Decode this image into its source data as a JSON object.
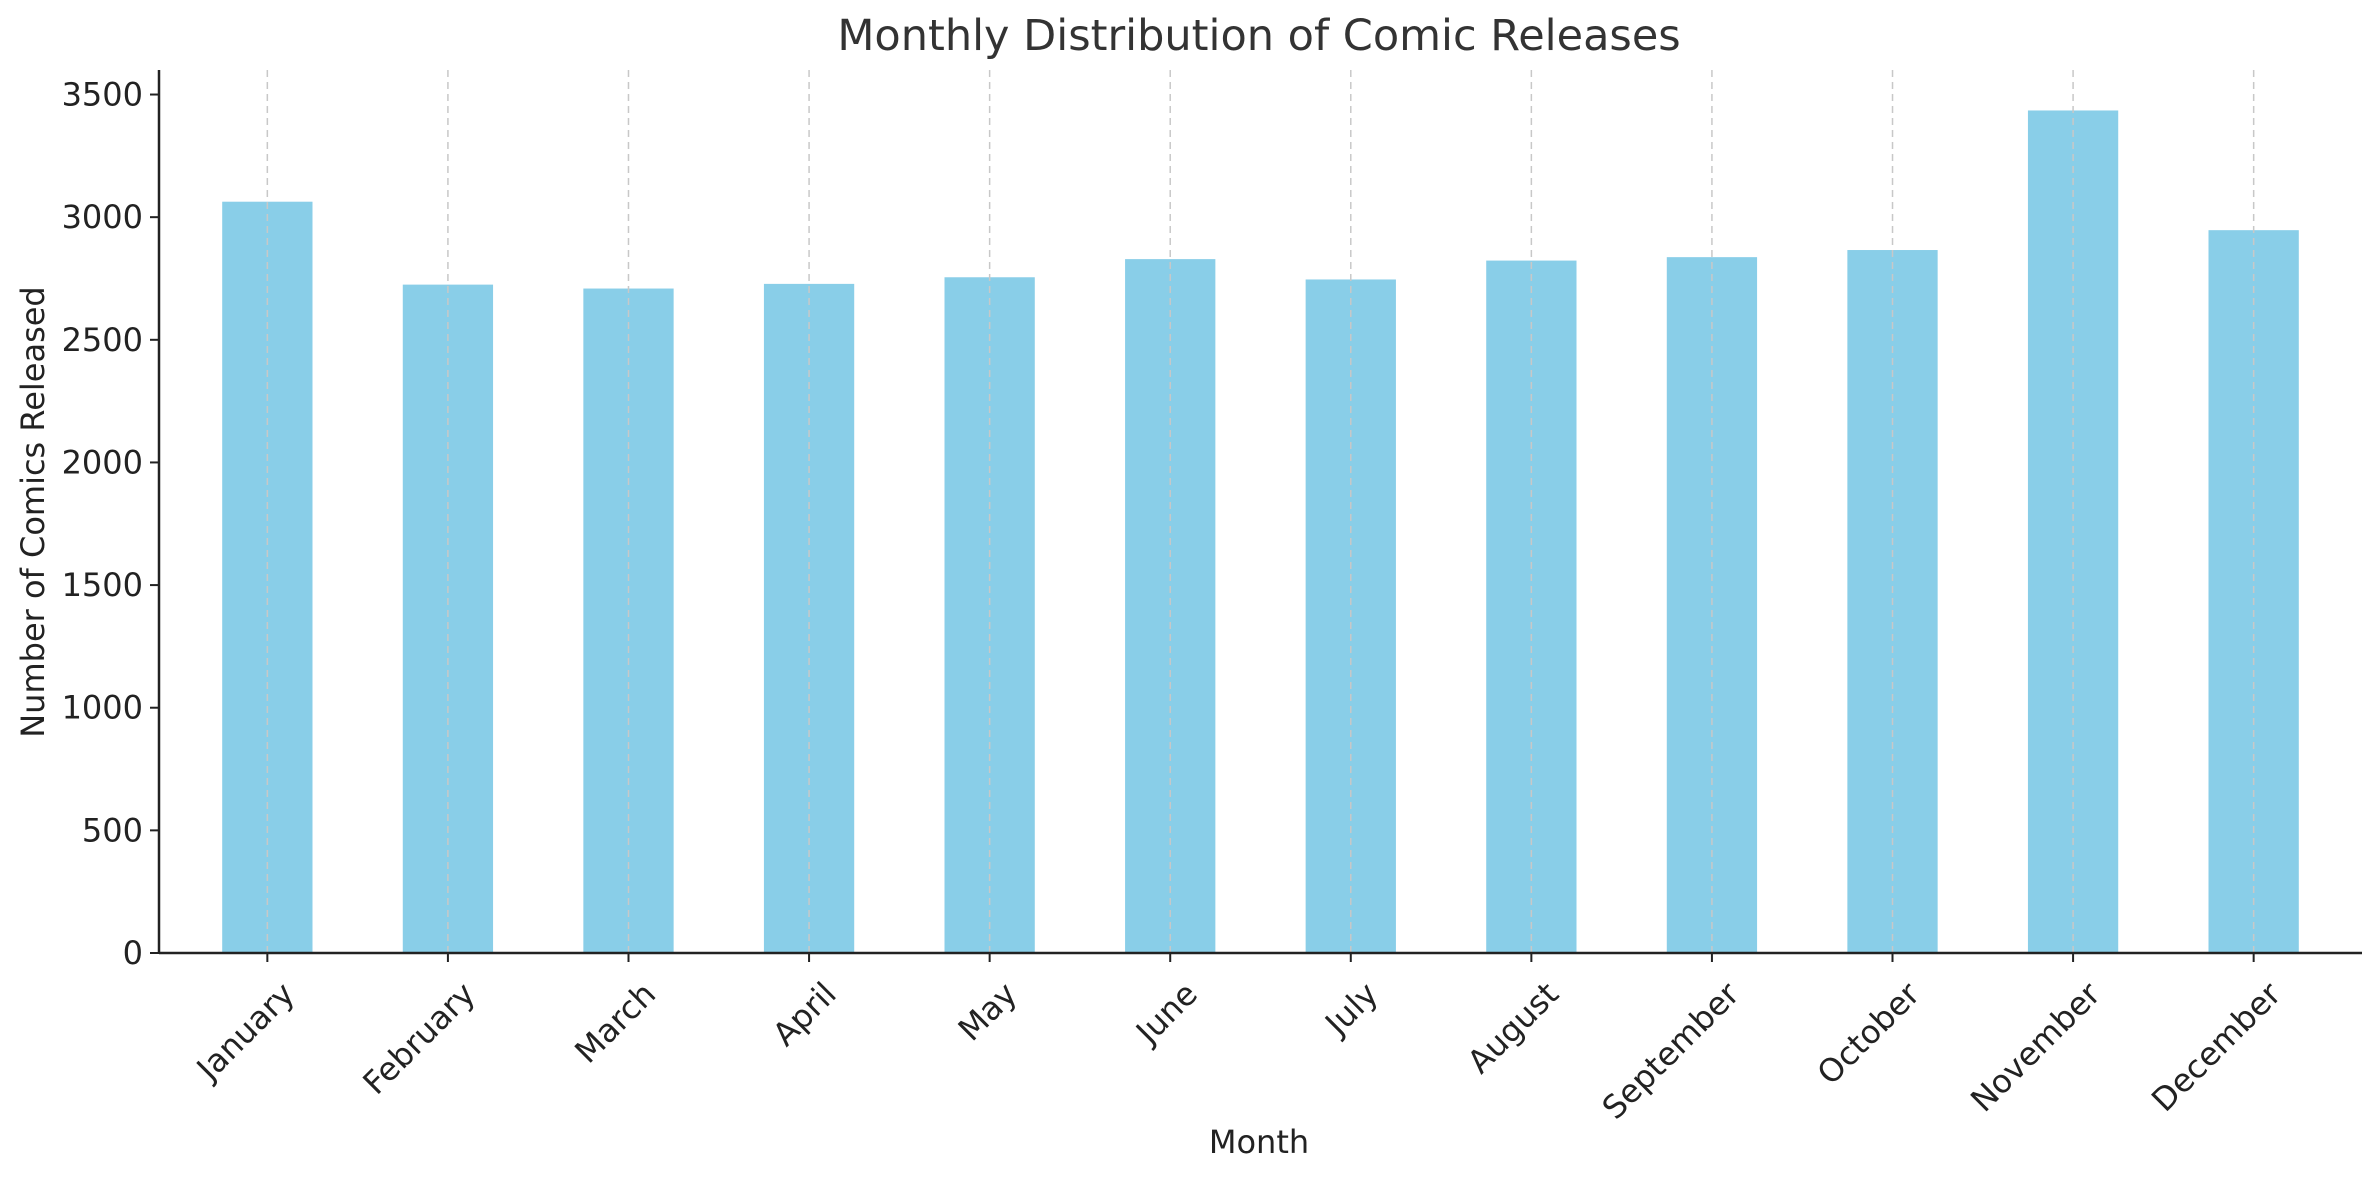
{
  "chart_data": {
    "type": "bar",
    "title": "Monthly Distribution of Comic Releases",
    "xlabel": "Month",
    "ylabel": "Number of Comics Released",
    "categories": [
      "January",
      "February",
      "March",
      "April",
      "May",
      "June",
      "July",
      "August",
      "September",
      "October",
      "November",
      "December"
    ],
    "values": [
      3063,
      2725,
      2709,
      2728,
      2755,
      2829,
      2746,
      2823,
      2837,
      2866,
      3435,
      2947
    ],
    "ylim": [
      0,
      3600
    ],
    "yticks": [
      0,
      500,
      1000,
      1500,
      2000,
      2500,
      3000,
      3500
    ],
    "ytick_labels": [
      "0",
      "500",
      "1000",
      "1500",
      "2000",
      "2500",
      "3000",
      "3500"
    ],
    "bar_color": "#89CEE8",
    "grid": "vertical dashed",
    "legend": "none"
  }
}
